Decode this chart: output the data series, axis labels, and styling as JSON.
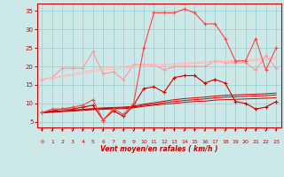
{
  "background_color": "#cce8e8",
  "grid_color": "#99cccc",
  "xlabel": "Vent moyen/en rafales ( km/h )",
  "x_ticks": [
    0,
    1,
    2,
    3,
    4,
    5,
    6,
    7,
    8,
    9,
    10,
    11,
    12,
    13,
    14,
    15,
    16,
    17,
    18,
    19,
    20,
    21,
    22,
    23
  ],
  "ylim": [
    3.5,
    37
  ],
  "yticks": [
    5,
    10,
    15,
    20,
    25,
    30,
    35
  ],
  "lines": [
    {
      "color": "#cc0000",
      "linewidth": 0.8,
      "marker": "+",
      "markersize": 3.0,
      "values": [
        7.5,
        8.0,
        8.5,
        8.5,
        9.0,
        9.5,
        5.5,
        8.0,
        6.5,
        9.5,
        14.0,
        14.5,
        13.0,
        17.0,
        17.5,
        17.5,
        15.5,
        16.5,
        15.5,
        10.5,
        10.0,
        8.5,
        9.0,
        10.5
      ]
    },
    {
      "color": "#cc0000",
      "linewidth": 0.7,
      "marker": null,
      "markersize": 0,
      "values": [
        7.5,
        7.8,
        8.0,
        8.2,
        8.4,
        8.6,
        8.8,
        8.9,
        9.0,
        9.2,
        9.8,
        10.2,
        10.6,
        11.0,
        11.3,
        11.5,
        11.7,
        12.0,
        12.2,
        12.3,
        12.4,
        12.5,
        12.6,
        12.8
      ]
    },
    {
      "color": "#cc0000",
      "linewidth": 0.7,
      "marker": null,
      "markersize": 0,
      "values": [
        7.5,
        7.7,
        7.9,
        8.1,
        8.3,
        8.5,
        8.6,
        8.7,
        8.8,
        9.0,
        9.5,
        9.8,
        10.2,
        10.5,
        10.8,
        11.0,
        11.2,
        11.5,
        11.7,
        11.8,
        11.9,
        12.0,
        12.1,
        12.3
      ]
    },
    {
      "color": "#cc0000",
      "linewidth": 0.7,
      "marker": null,
      "markersize": 0,
      "values": [
        7.5,
        7.6,
        7.8,
        7.9,
        8.1,
        8.3,
        8.4,
        8.5,
        8.6,
        8.8,
        9.2,
        9.5,
        9.8,
        10.0,
        10.3,
        10.5,
        10.6,
        10.9,
        11.0,
        11.1,
        11.2,
        11.3,
        11.4,
        11.5
      ]
    },
    {
      "color": "#ff9999",
      "linewidth": 0.8,
      "marker": "+",
      "markersize": 3.0,
      "values": [
        16.5,
        17.0,
        19.5,
        19.5,
        19.5,
        24.0,
        18.0,
        18.5,
        16.5,
        20.5,
        20.5,
        20.5,
        19.0,
        20.0,
        20.0,
        20.0,
        20.0,
        21.5,
        21.0,
        21.0,
        21.0,
        19.0,
        23.0,
        19.5
      ]
    },
    {
      "color": "#ffbbbb",
      "linewidth": 0.7,
      "marker": null,
      "markersize": 0,
      "values": [
        16.5,
        17.0,
        17.5,
        18.0,
        18.5,
        19.0,
        19.5,
        19.8,
        20.0,
        20.2,
        20.4,
        20.5,
        20.6,
        20.8,
        21.0,
        21.0,
        21.2,
        21.4,
        21.5,
        21.6,
        21.8,
        22.0,
        22.2,
        22.5
      ]
    },
    {
      "color": "#ffbbbb",
      "linewidth": 0.7,
      "marker": null,
      "markersize": 0,
      "values": [
        16.5,
        16.8,
        17.2,
        17.6,
        18.0,
        18.5,
        19.0,
        19.3,
        19.5,
        19.8,
        20.0,
        20.2,
        20.3,
        20.5,
        20.6,
        20.8,
        21.0,
        21.1,
        21.2,
        21.3,
        21.5,
        21.6,
        21.8,
        22.0
      ]
    },
    {
      "color": "#ff4444",
      "linewidth": 0.8,
      "marker": "+",
      "markersize": 3.0,
      "values": [
        7.5,
        8.5,
        8.5,
        9.0,
        9.5,
        11.0,
        5.5,
        8.5,
        7.0,
        10.0,
        25.0,
        34.5,
        34.5,
        34.5,
        35.5,
        34.5,
        31.5,
        31.5,
        27.5,
        21.5,
        21.5,
        27.5,
        19.0,
        25.0
      ]
    }
  ],
  "arrow_color": "#cc0000",
  "tick_label_color": "#cc0000",
  "xlabel_color": "#cc0000"
}
